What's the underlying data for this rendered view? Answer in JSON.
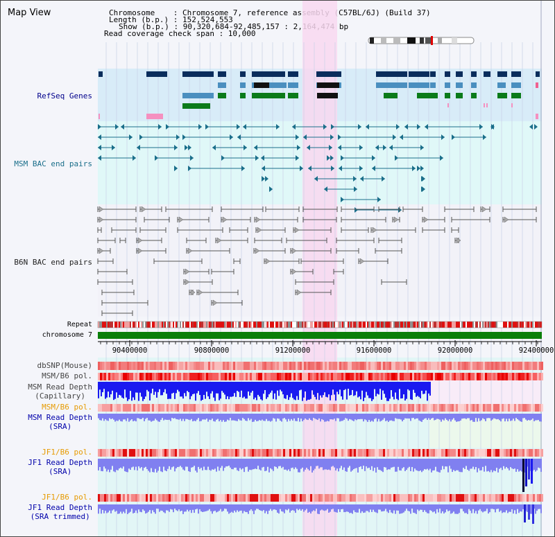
{
  "page": {
    "title": "Map View"
  },
  "info": {
    "chromosome_label": "Chromosome    : Chromosome 7, reference assembly (C57BL/6J) (Build 37)",
    "length_label": "Length (b.p.) : 152,524,553",
    "show_label": "Show (b.p.) : 90,320,684-92,485,157 : 2,164,474 bp",
    "coverage_label": "Read coverage check span : 10,000"
  },
  "tracks": {
    "refseq": {
      "label": "RefSeq Genes",
      "color": "#00008b"
    },
    "msm_bac": {
      "label": "MSM BAC end pairs",
      "color": "#1a6e8a"
    },
    "b6n_bac": {
      "label": "B6N BAC end pairs",
      "color": "#222222"
    },
    "repeat": {
      "label": "Repeat"
    },
    "chromosome": {
      "label": "chromosome 7"
    },
    "dbsnp": {
      "label": "dbSNP(Mouse)"
    },
    "msm_b6_pol_1": {
      "label": "MSM/B6 pol."
    },
    "msm_depth_cap": {
      "label_1": "MSM Read Depth",
      "label_2": "(Capillary)"
    },
    "msm_b6_pol_2": {
      "label": "MSM/B6 pol."
    },
    "msm_depth_sra": {
      "label_1": "MSM Read Depth",
      "label_2": "(SRA)"
    },
    "jf1_b6_pol_1": {
      "label": "JF1/B6 pol."
    },
    "jf1_depth_sra": {
      "label_1": "JF1 Read Depth",
      "label_2": "(SRA)"
    },
    "jf1_b6_pol_2": {
      "label": "JF1/B6 pol."
    },
    "jf1_depth_trim": {
      "label_1": "JF1 Read Depth",
      "label_2": "(SRA trimmed)"
    }
  },
  "axis": {
    "ticks": [
      "90400000",
      "90800000",
      "91200000",
      "91600000",
      "92000000",
      "92400000"
    ]
  },
  "colors": {
    "highlight": "#f8d8f0",
    "refseq_bg": "#d8ecf8",
    "msm_bg": "#e0f8f8",
    "gene_dark": "#0a2d5c",
    "gene_mid": "#4a8fbf",
    "gene_green": "#0b7b1a",
    "gene_pink": "#f590c0",
    "chrom_bar": "#0a7f0a",
    "depth_blue": "#1a1af0",
    "depth_light": "#8080f0"
  }
}
